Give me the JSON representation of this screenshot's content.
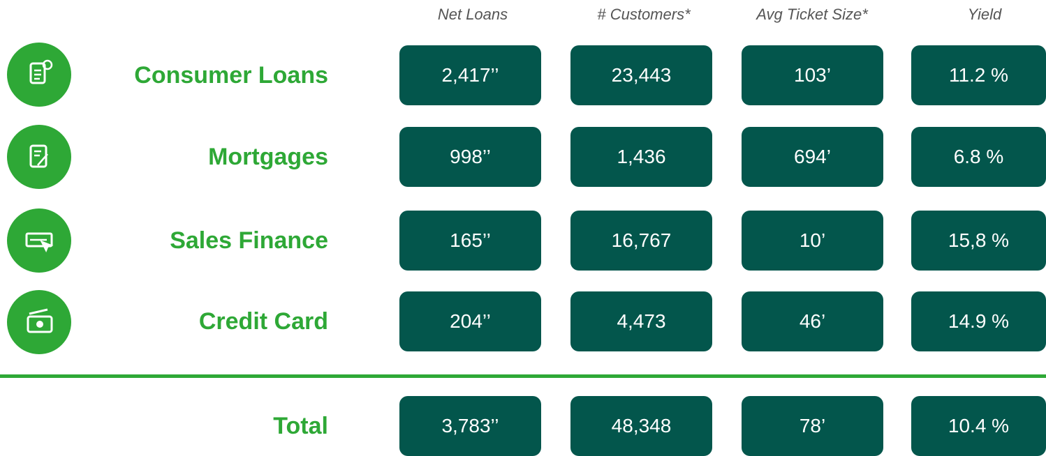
{
  "columns": [
    "Net Loans",
    "# Customers*",
    "Avg Ticket Size*",
    "Yield"
  ],
  "rows": [
    {
      "label": "Consumer Loans",
      "cells": [
        "2,417’’",
        "23,443",
        "103’",
        "11.2 %"
      ]
    },
    {
      "label": "Mortgages",
      "cells": [
        "998’’",
        "1,436",
        "694’",
        "6.8 %"
      ]
    },
    {
      "label": "Sales Finance",
      "cells": [
        "165’’",
        "16,767",
        "10’",
        "15,8 %"
      ]
    },
    {
      "label": "Credit Card",
      "cells": [
        "204’’",
        "4,473",
        "46’",
        "14.9 %"
      ]
    }
  ],
  "total": {
    "label": "Total",
    "cells": [
      "3,783’’",
      "48,348",
      "78’",
      "10.4 %"
    ]
  }
}
